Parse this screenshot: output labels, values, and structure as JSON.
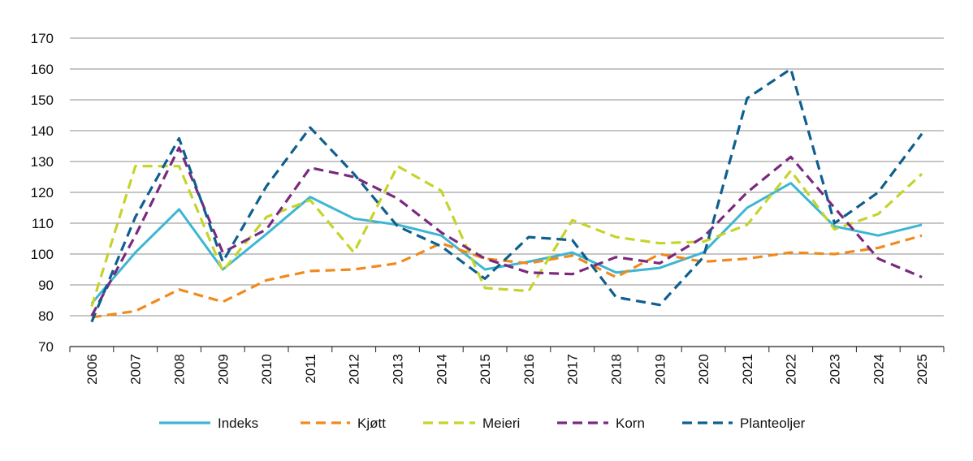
{
  "chart_data": {
    "type": "line",
    "title": "",
    "xlabel": "",
    "ylabel": "",
    "ylim": [
      70,
      170
    ],
    "yticks": [
      70,
      80,
      90,
      100,
      110,
      120,
      130,
      140,
      150,
      160,
      170
    ],
    "grid": "horizontal",
    "legend_position": "bottom",
    "categories": [
      "2006",
      "2007",
      "2008",
      "2009",
      "2010",
      "2011",
      "2012",
      "2013",
      "2014",
      "2015",
      "2016",
      "2017",
      "2018",
      "2019",
      "2020",
      "2021",
      "2022",
      "2023",
      "2024",
      "2025"
    ],
    "series": [
      {
        "name": "Indeks",
        "color": "#3cb6d3",
        "dashed": false,
        "values": [
          84,
          100.5,
          114.5,
          95,
          106.5,
          118.5,
          111.5,
          109.5,
          106,
          95,
          97.5,
          100.5,
          94,
          95.5,
          100.5,
          115,
          123,
          109,
          106,
          109.5
        ]
      },
      {
        "name": "Kjøtt",
        "color": "#f08a1c",
        "dashed": true,
        "values": [
          79.5,
          81.5,
          88.5,
          84.5,
          91.5,
          94.5,
          95,
          97,
          103.5,
          98.5,
          97,
          99.5,
          92.5,
          100,
          97.5,
          98.5,
          100.5,
          100,
          102,
          106
        ]
      },
      {
        "name": "Meieri",
        "color": "#c5d42a",
        "dashed": true,
        "values": [
          83,
          128.5,
          128.5,
          94.5,
          112,
          117.5,
          100.5,
          128.5,
          120.5,
          89,
          88,
          111,
          105.5,
          103.5,
          104,
          109.5,
          127,
          108,
          113,
          126
        ]
      },
      {
        "name": "Korn",
        "color": "#7a2a7e",
        "dashed": true,
        "values": [
          80,
          106,
          134.5,
          100.5,
          108,
          128,
          125,
          118,
          107,
          98.5,
          94,
          93.5,
          99,
          97,
          105.5,
          120,
          131.5,
          115,
          98.5,
          92.5
        ]
      },
      {
        "name": "Planteoljer",
        "color": "#0e5f8e",
        "dashed": true,
        "values": [
          78,
          112,
          137.5,
          97.5,
          122,
          141,
          126,
          109,
          102.5,
          92,
          105.5,
          104.5,
          86,
          83.5,
          99,
          150.5,
          160,
          110,
          120,
          139
        ]
      }
    ]
  }
}
